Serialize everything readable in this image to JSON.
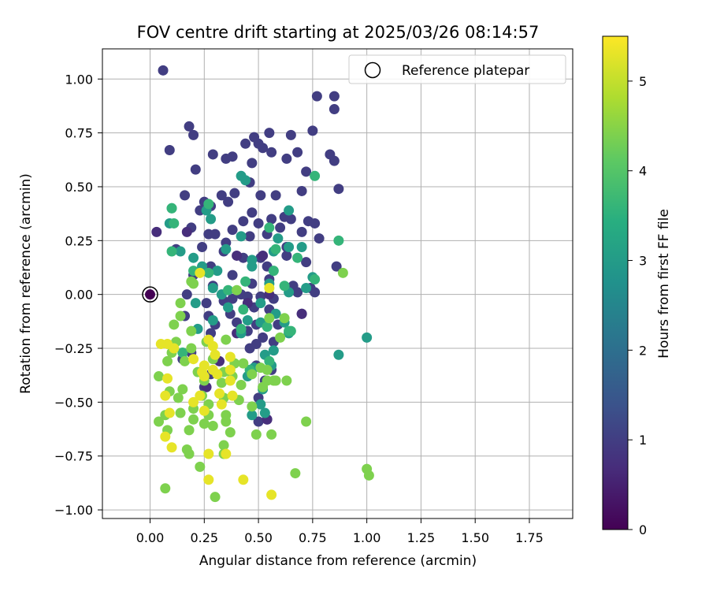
{
  "chart_data": {
    "type": "scatter",
    "title": "FOV centre drift starting at 2025/03/26 08:14:57",
    "xlabel": "Angular distance from reference (arcmin)",
    "ylabel": "Rotation from reference (arcmin)",
    "xlim": [
      -0.22,
      1.95
    ],
    "ylim": [
      -1.04,
      1.14
    ],
    "xticks": [
      "0.00",
      "0.25",
      "0.50",
      "0.75",
      "1.00",
      "1.25",
      "1.50",
      "1.75"
    ],
    "yticks": [
      "-1.00",
      "-0.75",
      "-0.50",
      "-0.25",
      "0.00",
      "0.25",
      "0.50",
      "0.75",
      "1.00"
    ],
    "grid": true,
    "legend": {
      "position": "top-right",
      "label": "Reference platepar"
    },
    "colorbar": {
      "label": "Hours from first FF file",
      "min": 0,
      "max": 5.5,
      "ticks": [
        "0",
        "1",
        "2",
        "3",
        "4",
        "5"
      ],
      "colormap": "viridis"
    },
    "reference_point": {
      "x": 0.0,
      "y": 0.0
    },
    "series": [
      {
        "hours": 1.0,
        "points": [
          [
            0.06,
            1.04
          ],
          [
            0.77,
            0.92
          ],
          [
            0.85,
            0.92
          ],
          [
            0.85,
            0.86
          ],
          [
            0.18,
            0.78
          ],
          [
            0.55,
            0.75
          ],
          [
            0.75,
            0.76
          ],
          [
            0.2,
            0.74
          ],
          [
            0.48,
            0.73
          ],
          [
            0.5,
            0.7
          ],
          [
            0.65,
            0.74
          ],
          [
            0.44,
            0.7
          ],
          [
            0.52,
            0.68
          ],
          [
            0.09,
            0.67
          ],
          [
            0.29,
            0.65
          ],
          [
            0.35,
            0.63
          ],
          [
            0.38,
            0.64
          ],
          [
            0.56,
            0.66
          ],
          [
            0.68,
            0.66
          ],
          [
            0.83,
            0.65
          ],
          [
            0.47,
            0.61
          ],
          [
            0.21,
            0.58
          ],
          [
            0.63,
            0.63
          ],
          [
            0.85,
            0.62
          ],
          [
            0.72,
            0.57
          ],
          [
            0.46,
            0.52
          ],
          [
            0.87,
            0.49
          ],
          [
            0.58,
            0.46
          ],
          [
            0.25,
            0.43
          ],
          [
            0.33,
            0.46
          ],
          [
            0.28,
            0.41
          ],
          [
            0.39,
            0.47
          ],
          [
            0.16,
            0.46
          ],
          [
            0.7,
            0.48
          ],
          [
            0.51,
            0.46
          ],
          [
            0.23,
            0.39
          ],
          [
            0.36,
            0.43
          ],
          [
            0.62,
            0.36
          ],
          [
            0.38,
            0.3
          ],
          [
            0.47,
            0.38
          ],
          [
            0.65,
            0.35
          ],
          [
            0.73,
            0.34
          ],
          [
            0.56,
            0.35
          ],
          [
            0.5,
            0.33
          ],
          [
            0.43,
            0.34
          ],
          [
            0.6,
            0.31
          ],
          [
            0.76,
            0.33
          ],
          [
            0.78,
            0.26
          ],
          [
            0.19,
            0.31
          ],
          [
            0.27,
            0.28
          ],
          [
            0.35,
            0.24
          ],
          [
            0.46,
            0.27
          ],
          [
            0.7,
            0.29
          ],
          [
            0.54,
            0.28
          ],
          [
            0.63,
            0.22
          ],
          [
            0.3,
            0.28
          ],
          [
            0.12,
            0.21
          ],
          [
            0.24,
            0.22
          ],
          [
            0.34,
            0.2
          ],
          [
            0.51,
            0.17
          ],
          [
            0.63,
            0.18
          ],
          [
            0.72,
            0.15
          ],
          [
            0.43,
            0.17
          ],
          [
            0.28,
            0.13
          ],
          [
            0.54,
            0.13
          ],
          [
            0.86,
            0.13
          ],
          [
            0.38,
            0.09
          ],
          [
            0.2,
            0.09
          ],
          [
            0.47,
            0.05
          ],
          [
            0.55,
            0.07
          ],
          [
            0.74,
            0.03
          ],
          [
            0.66,
            0.04
          ],
          [
            0.29,
            0.04
          ],
          [
            0.17,
            0.0
          ],
          [
            0.34,
            -0.03
          ],
          [
            0.38,
            -0.02
          ],
          [
            0.42,
            0.0
          ],
          [
            0.45,
            -0.01
          ],
          [
            0.51,
            -0.01
          ],
          [
            0.57,
            -0.02
          ],
          [
            0.68,
            0.01
          ],
          [
            0.76,
            0.01
          ],
          [
            0.26,
            -0.04
          ],
          [
            0.48,
            -0.06
          ],
          [
            0.55,
            -0.07
          ],
          [
            0.7,
            -0.09
          ],
          [
            0.37,
            -0.09
          ],
          [
            0.16,
            -0.1
          ],
          [
            0.27,
            -0.1
          ],
          [
            0.49,
            -0.14
          ],
          [
            0.59,
            -0.14
          ],
          [
            0.3,
            -0.14
          ],
          [
            0.4,
            -0.13
          ],
          [
            0.45,
            -0.17
          ],
          [
            0.28,
            -0.18
          ],
          [
            0.52,
            -0.2
          ],
          [
            0.57,
            -0.22
          ],
          [
            0.49,
            -0.23
          ],
          [
            0.19,
            -0.27
          ],
          [
            0.46,
            -0.25
          ],
          [
            0.15,
            -0.3
          ],
          [
            0.3,
            -0.3
          ],
          [
            0.28,
            -0.37
          ],
          [
            0.49,
            -0.33
          ],
          [
            0.56,
            -0.35
          ],
          [
            0.25,
            -0.43
          ],
          [
            0.53,
            -0.4
          ],
          [
            0.5,
            -0.48
          ],
          [
            0.54,
            -0.58
          ],
          [
            0.5,
            -0.59
          ]
        ]
      },
      {
        "hours": 0.7,
        "points": [
          [
            0.03,
            0.29
          ],
          [
            0.17,
            0.29
          ],
          [
            0.4,
            0.18
          ],
          [
            0.52,
            0.18
          ],
          [
            0.45,
            -0.04
          ],
          [
            0.55,
            0.0
          ],
          [
            0.7,
            -0.09
          ],
          [
            0.4,
            -0.18
          ],
          [
            0.32,
            -0.31
          ],
          [
            0.26,
            -0.43
          ],
          [
            0.54,
            -0.58
          ]
        ]
      },
      {
        "hours": 3.0,
        "points": [
          [
            0.1,
            0.4
          ],
          [
            0.26,
            0.39
          ],
          [
            0.28,
            0.35
          ],
          [
            0.35,
            0.21
          ],
          [
            0.42,
            0.27
          ],
          [
            0.57,
            0.2
          ],
          [
            0.47,
            0.16
          ],
          [
            0.31,
            0.11
          ],
          [
            0.47,
            0.13
          ],
          [
            0.29,
            0.03
          ],
          [
            0.33,
            0.0
          ],
          [
            0.55,
            0.05
          ],
          [
            0.64,
            0.22
          ],
          [
            0.7,
            0.22
          ],
          [
            0.75,
            0.08
          ],
          [
            0.72,
            0.03
          ],
          [
            0.64,
            0.01
          ],
          [
            0.21,
            -0.04
          ],
          [
            0.36,
            -0.06
          ],
          [
            0.51,
            -0.04
          ],
          [
            0.58,
            -0.09
          ],
          [
            0.45,
            -0.12
          ],
          [
            0.22,
            -0.16
          ],
          [
            0.29,
            -0.12
          ],
          [
            0.42,
            -0.18
          ],
          [
            0.62,
            -0.13
          ],
          [
            0.64,
            -0.18
          ],
          [
            0.51,
            -0.13
          ],
          [
            0.53,
            -0.28
          ],
          [
            0.57,
            -0.26
          ],
          [
            0.48,
            -0.34
          ],
          [
            0.56,
            -0.33
          ],
          [
            0.87,
            -0.28
          ],
          [
            1.0,
            -0.2
          ],
          [
            0.45,
            -0.38
          ],
          [
            0.52,
            -0.44
          ],
          [
            0.51,
            -0.51
          ],
          [
            0.53,
            -0.55
          ],
          [
            0.47,
            -0.56
          ],
          [
            0.14,
            0.2
          ],
          [
            0.2,
            0.17
          ],
          [
            0.24,
            0.13
          ],
          [
            0.09,
            0.33
          ],
          [
            0.59,
            0.26
          ],
          [
            0.64,
            0.39
          ],
          [
            0.44,
            0.53
          ],
          [
            0.42,
            0.55
          ]
        ]
      },
      {
        "hours": 3.6,
        "points": [
          [
            0.1,
            0.4
          ],
          [
            0.11,
            0.33
          ],
          [
            0.27,
            0.42
          ],
          [
            0.76,
            0.55
          ],
          [
            0.87,
            0.25
          ],
          [
            0.55,
            0.31
          ],
          [
            0.44,
            0.06
          ],
          [
            0.27,
            0.1
          ],
          [
            0.57,
            0.11
          ],
          [
            0.68,
            0.17
          ],
          [
            0.62,
            0.04
          ],
          [
            0.64,
            -0.17
          ],
          [
            0.54,
            -0.15
          ],
          [
            0.43,
            -0.07
          ],
          [
            0.76,
            0.07
          ],
          [
            0.42,
            -0.16
          ],
          [
            0.15,
            -0.27
          ],
          [
            0.55,
            -0.31
          ],
          [
            0.46,
            -0.35
          ],
          [
            0.65,
            -0.17
          ],
          [
            0.58,
            0.21
          ],
          [
            0.36,
            0.02
          ],
          [
            0.2,
            0.11
          ],
          [
            0.1,
            0.2
          ]
        ]
      },
      {
        "hours": 4.4,
        "points": [
          [
            0.89,
            0.1
          ],
          [
            0.19,
            0.06
          ],
          [
            0.2,
            0.05
          ],
          [
            0.14,
            -0.04
          ],
          [
            0.4,
            0.02
          ],
          [
            0.55,
            -0.11
          ],
          [
            0.62,
            -0.11
          ],
          [
            0.6,
            -0.2
          ],
          [
            0.14,
            -0.1
          ],
          [
            0.11,
            -0.14
          ],
          [
            0.19,
            -0.17
          ],
          [
            0.19,
            -0.25
          ],
          [
            0.26,
            -0.22
          ],
          [
            0.35,
            -0.21
          ],
          [
            0.12,
            -0.22
          ],
          [
            0.1,
            -0.27
          ],
          [
            0.16,
            -0.31
          ],
          [
            0.29,
            -0.3
          ],
          [
            0.39,
            -0.32
          ],
          [
            0.08,
            -0.31
          ],
          [
            0.22,
            -0.36
          ],
          [
            0.34,
            -0.36
          ],
          [
            0.43,
            -0.32
          ],
          [
            0.47,
            -0.37
          ],
          [
            0.51,
            -0.34
          ],
          [
            0.25,
            -0.4
          ],
          [
            0.33,
            -0.41
          ],
          [
            0.38,
            -0.38
          ],
          [
            0.54,
            -0.4
          ],
          [
            0.58,
            -0.4
          ],
          [
            0.04,
            -0.38
          ],
          [
            0.09,
            -0.45
          ],
          [
            0.15,
            -0.44
          ],
          [
            0.24,
            -0.47
          ],
          [
            0.34,
            -0.48
          ],
          [
            0.42,
            -0.42
          ],
          [
            0.52,
            -0.43
          ],
          [
            0.63,
            -0.4
          ],
          [
            0.13,
            -0.48
          ],
          [
            0.2,
            -0.53
          ],
          [
            0.27,
            -0.51
          ],
          [
            0.41,
            -0.49
          ],
          [
            0.47,
            -0.52
          ],
          [
            0.35,
            -0.56
          ],
          [
            0.04,
            -0.59
          ],
          [
            0.14,
            -0.55
          ],
          [
            0.2,
            -0.58
          ],
          [
            0.27,
            -0.56
          ],
          [
            0.07,
            -0.56
          ],
          [
            0.25,
            -0.6
          ],
          [
            0.35,
            -0.59
          ],
          [
            0.08,
            -0.63
          ],
          [
            0.18,
            -0.63
          ],
          [
            0.29,
            -0.61
          ],
          [
            0.37,
            -0.64
          ],
          [
            0.49,
            -0.65
          ],
          [
            0.56,
            -0.65
          ],
          [
            0.72,
            -0.59
          ],
          [
            0.34,
            -0.7
          ],
          [
            0.17,
            -0.72
          ],
          [
            0.18,
            -0.74
          ],
          [
            0.34,
            -0.74
          ],
          [
            0.67,
            -0.83
          ],
          [
            0.23,
            -0.8
          ],
          [
            0.07,
            -0.9
          ],
          [
            0.3,
            -0.94
          ],
          [
            1.0,
            -0.81
          ],
          [
            1.01,
            -0.84
          ],
          [
            0.57,
            -0.4
          ],
          [
            0.54,
            -0.35
          ]
        ]
      },
      {
        "hours": 5.3,
        "points": [
          [
            0.55,
            0.03
          ],
          [
            0.23,
            0.1
          ],
          [
            0.08,
            -0.23
          ],
          [
            0.11,
            -0.25
          ],
          [
            0.2,
            -0.3
          ],
          [
            0.27,
            -0.21
          ],
          [
            0.29,
            -0.24
          ],
          [
            0.3,
            -0.28
          ],
          [
            0.24,
            -0.36
          ],
          [
            0.29,
            -0.35
          ],
          [
            0.25,
            -0.33
          ],
          [
            0.31,
            -0.37
          ],
          [
            0.37,
            -0.35
          ],
          [
            0.37,
            -0.4
          ],
          [
            0.32,
            -0.46
          ],
          [
            0.25,
            -0.38
          ],
          [
            0.08,
            -0.39
          ],
          [
            0.07,
            -0.47
          ],
          [
            0.2,
            -0.5
          ],
          [
            0.33,
            -0.51
          ],
          [
            0.38,
            -0.47
          ],
          [
            0.25,
            -0.54
          ],
          [
            0.09,
            -0.55
          ],
          [
            0.07,
            -0.66
          ],
          [
            0.1,
            -0.71
          ],
          [
            0.27,
            -0.74
          ],
          [
            0.35,
            -0.74
          ],
          [
            0.27,
            -0.86
          ],
          [
            0.43,
            -0.86
          ],
          [
            0.56,
            -0.93
          ],
          [
            0.05,
            -0.23
          ],
          [
            0.37,
            -0.29
          ],
          [
            0.23,
            -0.47
          ]
        ]
      }
    ]
  }
}
